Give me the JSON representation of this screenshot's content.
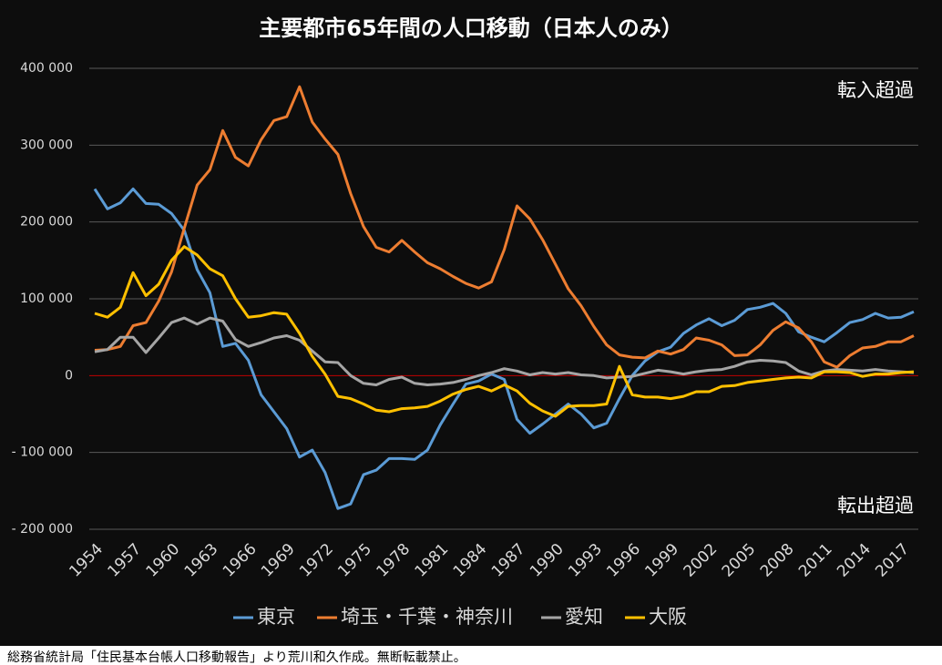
{
  "chart_data": {
    "type": "line",
    "title": "主要都市65年間の人口移動（日本人のみ）",
    "annotations": [
      "転入超過",
      "転出超過"
    ],
    "source": "総務省統計局「住民基本台帳人口移動報告」より荒川和久作成。無断転載禁止。",
    "x": [
      1954,
      1955,
      1956,
      1957,
      1958,
      1959,
      1960,
      1961,
      1962,
      1963,
      1964,
      1965,
      1966,
      1967,
      1968,
      1969,
      1970,
      1971,
      1972,
      1973,
      1974,
      1975,
      1976,
      1977,
      1978,
      1979,
      1980,
      1981,
      1982,
      1983,
      1984,
      1985,
      1986,
      1987,
      1988,
      1989,
      1990,
      1991,
      1992,
      1993,
      1994,
      1995,
      1996,
      1997,
      1998,
      1999,
      2000,
      2001,
      2002,
      2003,
      2004,
      2005,
      2006,
      2007,
      2008,
      2009,
      2010,
      2011,
      2012,
      2013,
      2014,
      2015,
      2016,
      2017,
      2018
    ],
    "xlim": [
      1954,
      2018
    ],
    "xticks": [
      1954,
      1957,
      1960,
      1963,
      1966,
      1969,
      1972,
      1975,
      1978,
      1981,
      1984,
      1987,
      1990,
      1993,
      1996,
      1999,
      2002,
      2005,
      2008,
      2011,
      2014,
      2017
    ],
    "ylim": [
      -200000,
      400000
    ],
    "yticks": [
      {
        "value": -200000,
        "label": "- 200 000"
      },
      {
        "value": -100000,
        "label": "- 100 000"
      },
      0,
      {
        "value": 100000,
        "label": "100 000"
      },
      {
        "value": 200000,
        "label": "200 000"
      },
      {
        "value": 300000,
        "label": "300 000"
      },
      {
        "value": 400000,
        "label": "400 000"
      }
    ],
    "grid": true,
    "legend": "bottom",
    "series": [
      {
        "name": "東京",
        "color": "#5b9bd5",
        "values": [
          243000,
          217000,
          225000,
          243000,
          224000,
          223000,
          211000,
          189000,
          138000,
          108000,
          38000,
          42000,
          20000,
          -25000,
          -47000,
          -69000,
          -106000,
          -97000,
          -126000,
          -173000,
          -167000,
          -129000,
          -123000,
          -108000,
          -108000,
          -109000,
          -97000,
          -64000,
          -37000,
          -11000,
          -7000,
          2000,
          -5000,
          -57000,
          -75000,
          -63000,
          -50000,
          -37000,
          -50000,
          -68000,
          -62000,
          -30000,
          0,
          19000,
          31000,
          37000,
          55000,
          66000,
          74000,
          65000,
          72000,
          86000,
          89000,
          94000,
          81000,
          57000,
          50000,
          44000,
          56000,
          69000,
          73000,
          81000,
          75000,
          76000,
          83000
        ]
      },
      {
        "name": "埼玉・千葉・神奈川",
        "color": "#ed7d31",
        "values": [
          33000,
          34000,
          38000,
          65000,
          69000,
          97000,
          135000,
          192000,
          248000,
          268000,
          319000,
          284000,
          273000,
          307000,
          332000,
          337000,
          376000,
          330000,
          308000,
          288000,
          237000,
          194000,
          167000,
          161000,
          176000,
          161000,
          147000,
          139000,
          129000,
          120000,
          114000,
          122000,
          164000,
          221000,
          204000,
          177000,
          145000,
          113000,
          91000,
          64000,
          40000,
          27000,
          24000,
          23000,
          32000,
          28000,
          34000,
          49000,
          46000,
          40000,
          26000,
          27000,
          40000,
          59000,
          70000,
          62000,
          44000,
          18000,
          11000,
          26000,
          36000,
          38000,
          44000,
          44000,
          52000
        ]
      },
      {
        "name": "愛知",
        "color": "#a5a5a5",
        "values": [
          31000,
          34000,
          50000,
          50000,
          30000,
          49000,
          69000,
          75000,
          67000,
          75000,
          71000,
          47000,
          38000,
          43000,
          49000,
          52000,
          46000,
          32000,
          18000,
          17000,
          0,
          -10000,
          -12000,
          -5000,
          -2000,
          -10000,
          -12000,
          -11000,
          -9000,
          -5000,
          0,
          4000,
          9000,
          6000,
          1000,
          4000,
          2000,
          4000,
          1000,
          0,
          -3000,
          -2000,
          -1000,
          3000,
          7000,
          5000,
          2000,
          5000,
          7000,
          8000,
          12000,
          18000,
          20000,
          19000,
          17000,
          6000,
          1000,
          6000,
          8000,
          7000,
          6000,
          8000,
          6000,
          5000,
          4000
        ]
      },
      {
        "name": "大阪",
        "color": "#ffc000",
        "values": [
          81000,
          76000,
          89000,
          134000,
          104000,
          119000,
          150000,
          168000,
          157000,
          139000,
          130000,
          100000,
          76000,
          78000,
          82000,
          80000,
          55000,
          25000,
          2000,
          -27000,
          -30000,
          -37000,
          -45000,
          -47000,
          -43000,
          -42000,
          -40000,
          -33000,
          -24000,
          -18000,
          -14000,
          -20000,
          -12000,
          -20000,
          -36000,
          -46000,
          -53000,
          -40000,
          -39000,
          -39000,
          -37000,
          12000,
          -25000,
          -28000,
          -28000,
          -30000,
          -27000,
          -21000,
          -21000,
          -14000,
          -13000,
          -9000,
          -7000,
          -5000,
          -3000,
          -2000,
          -3000,
          5000,
          5000,
          4000,
          -1000,
          2000,
          2000,
          4000,
          5000
        ]
      }
    ]
  }
}
